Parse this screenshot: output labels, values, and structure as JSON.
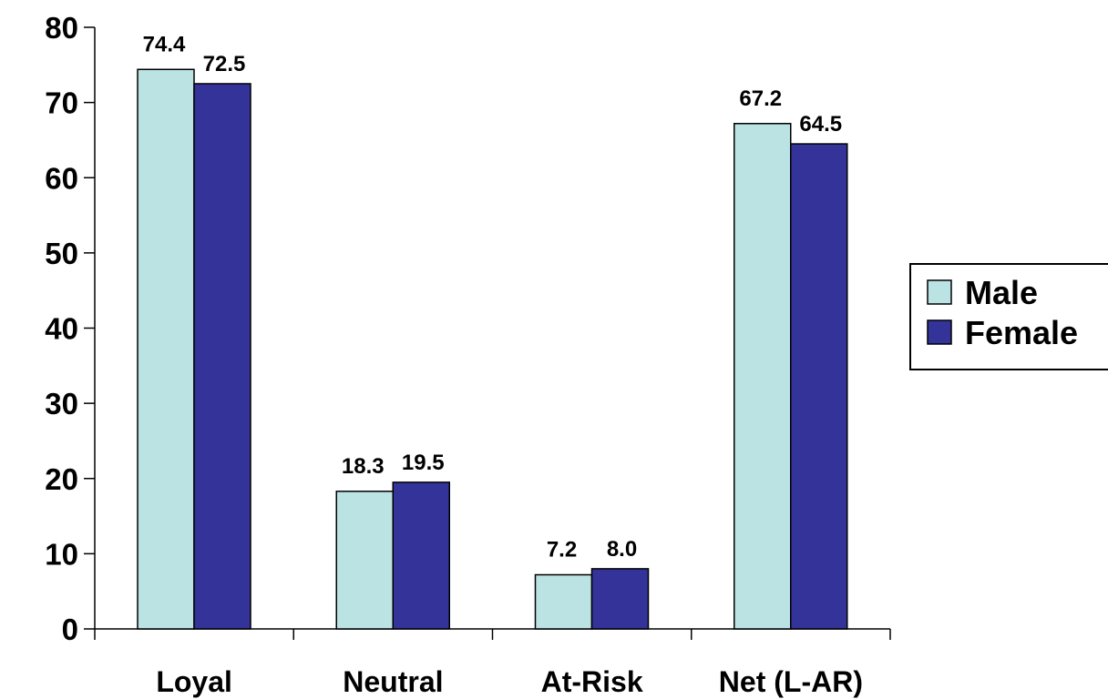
{
  "chart_data": {
    "type": "bar",
    "categories": [
      "Loyal",
      "Neutral",
      "At-Risk",
      "Net (L-AR)"
    ],
    "series": [
      {
        "name": "Male",
        "values": [
          74.4,
          18.3,
          7.2,
          67.2
        ],
        "labels": [
          "74.4",
          "18.3",
          "7.2",
          "67.2"
        ],
        "color": "#BBE3E3"
      },
      {
        "name": "Female",
        "values": [
          72.5,
          19.5,
          8.0,
          64.5
        ],
        "labels": [
          "72.5",
          "19.5",
          "8.0",
          "64.5"
        ],
        "color": "#333399"
      }
    ],
    "ylim": [
      0,
      80
    ],
    "yticks": [
      "0",
      "10",
      "20",
      "30",
      "40",
      "50",
      "60",
      "70",
      "80"
    ],
    "grid": false,
    "legend": "right"
  }
}
